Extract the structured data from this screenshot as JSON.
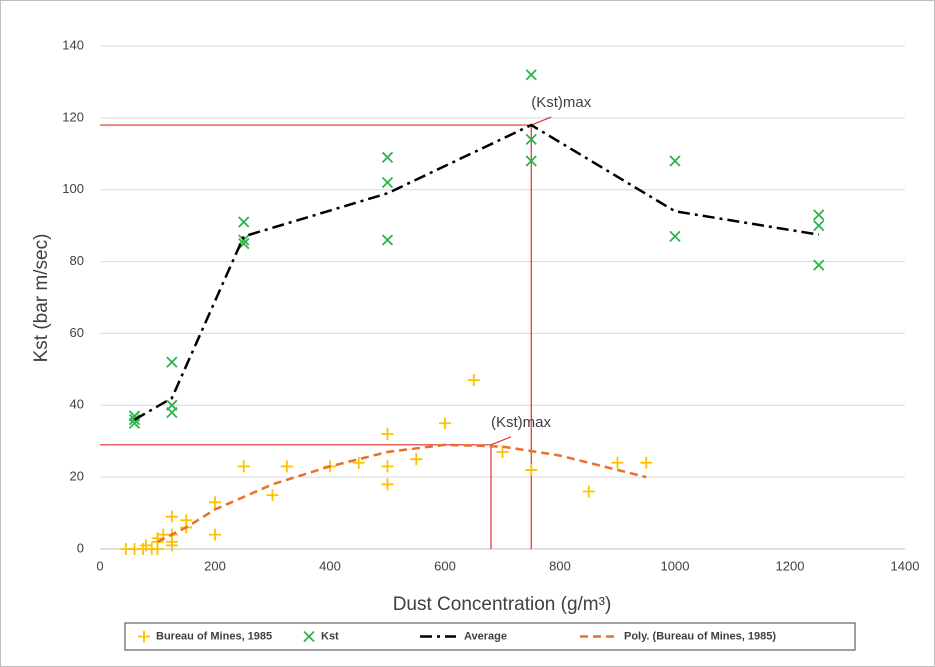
{
  "chart_data": {
    "type": "scatter",
    "xlabel": "Dust Concentration (g/m³)",
    "ylabel": "Kst (bar m/sec)",
    "xlim": [
      0,
      1400
    ],
    "xticks": [
      0,
      200,
      400,
      600,
      800,
      1000,
      1200,
      1400
    ],
    "ylim": [
      0,
      140
    ],
    "yticks": [
      0,
      20,
      40,
      60,
      80,
      100,
      120,
      140
    ],
    "grid": true,
    "legend": "bottom",
    "series": [
      {
        "name": "Bureau of Mines, 1985",
        "color": "#ffc000",
        "marker": "plus",
        "x": [
          45,
          60,
          75,
          80,
          90,
          100,
          100,
          100,
          110,
          125,
          125,
          125,
          125,
          150,
          150,
          200,
          200,
          250,
          300,
          325,
          400,
          450,
          500,
          500,
          500,
          550,
          600,
          650,
          700,
          750,
          850,
          900,
          950
        ],
        "values": [
          0,
          0,
          0,
          1,
          0,
          0,
          2,
          3,
          4,
          9,
          2,
          4,
          1,
          6,
          8,
          13,
          4,
          23,
          15,
          23,
          23,
          24,
          32,
          23,
          18,
          25,
          35,
          47,
          27,
          22,
          16,
          24,
          24
        ]
      },
      {
        "name": "Kst",
        "color": "#2db34a",
        "marker": "cross",
        "x": [
          60,
          60,
          60,
          125,
          125,
          125,
          250,
          250,
          250,
          500,
          500,
          500,
          750,
          750,
          750,
          1000,
          1000,
          1250,
          1250,
          1250
        ],
        "values": [
          37,
          36,
          35,
          52,
          40,
          38,
          91,
          86,
          85,
          109,
          102,
          86,
          132,
          114,
          108,
          108,
          87,
          93,
          90,
          79
        ]
      },
      {
        "name": "Average",
        "color": "#000000",
        "line": "dashdot",
        "x": [
          60,
          125,
          250,
          500,
          750,
          1000,
          1250
        ],
        "values": [
          36,
          42,
          87,
          99,
          118,
          94,
          87.5
        ]
      },
      {
        "name": "Poly. (Bureau of Mines, 1985)",
        "color": "#e8702a",
        "line": "dashed",
        "x": [
          100,
          150,
          200,
          300,
          400,
          500,
          600,
          700,
          800,
          900,
          950
        ],
        "values": [
          2,
          6,
          11,
          18,
          23,
          27,
          29,
          28.5,
          26,
          22,
          20
        ]
      }
    ],
    "reference_lines": [
      {
        "x": 750,
        "y": 118,
        "color": "#e03030"
      },
      {
        "x": 680,
        "y": 29,
        "color": "#e03030"
      }
    ],
    "annotations": [
      {
        "text": "(Kst)max",
        "x": 750,
        "y": 118
      },
      {
        "text": "(Kst)max",
        "x": 680,
        "y": 29
      }
    ]
  }
}
